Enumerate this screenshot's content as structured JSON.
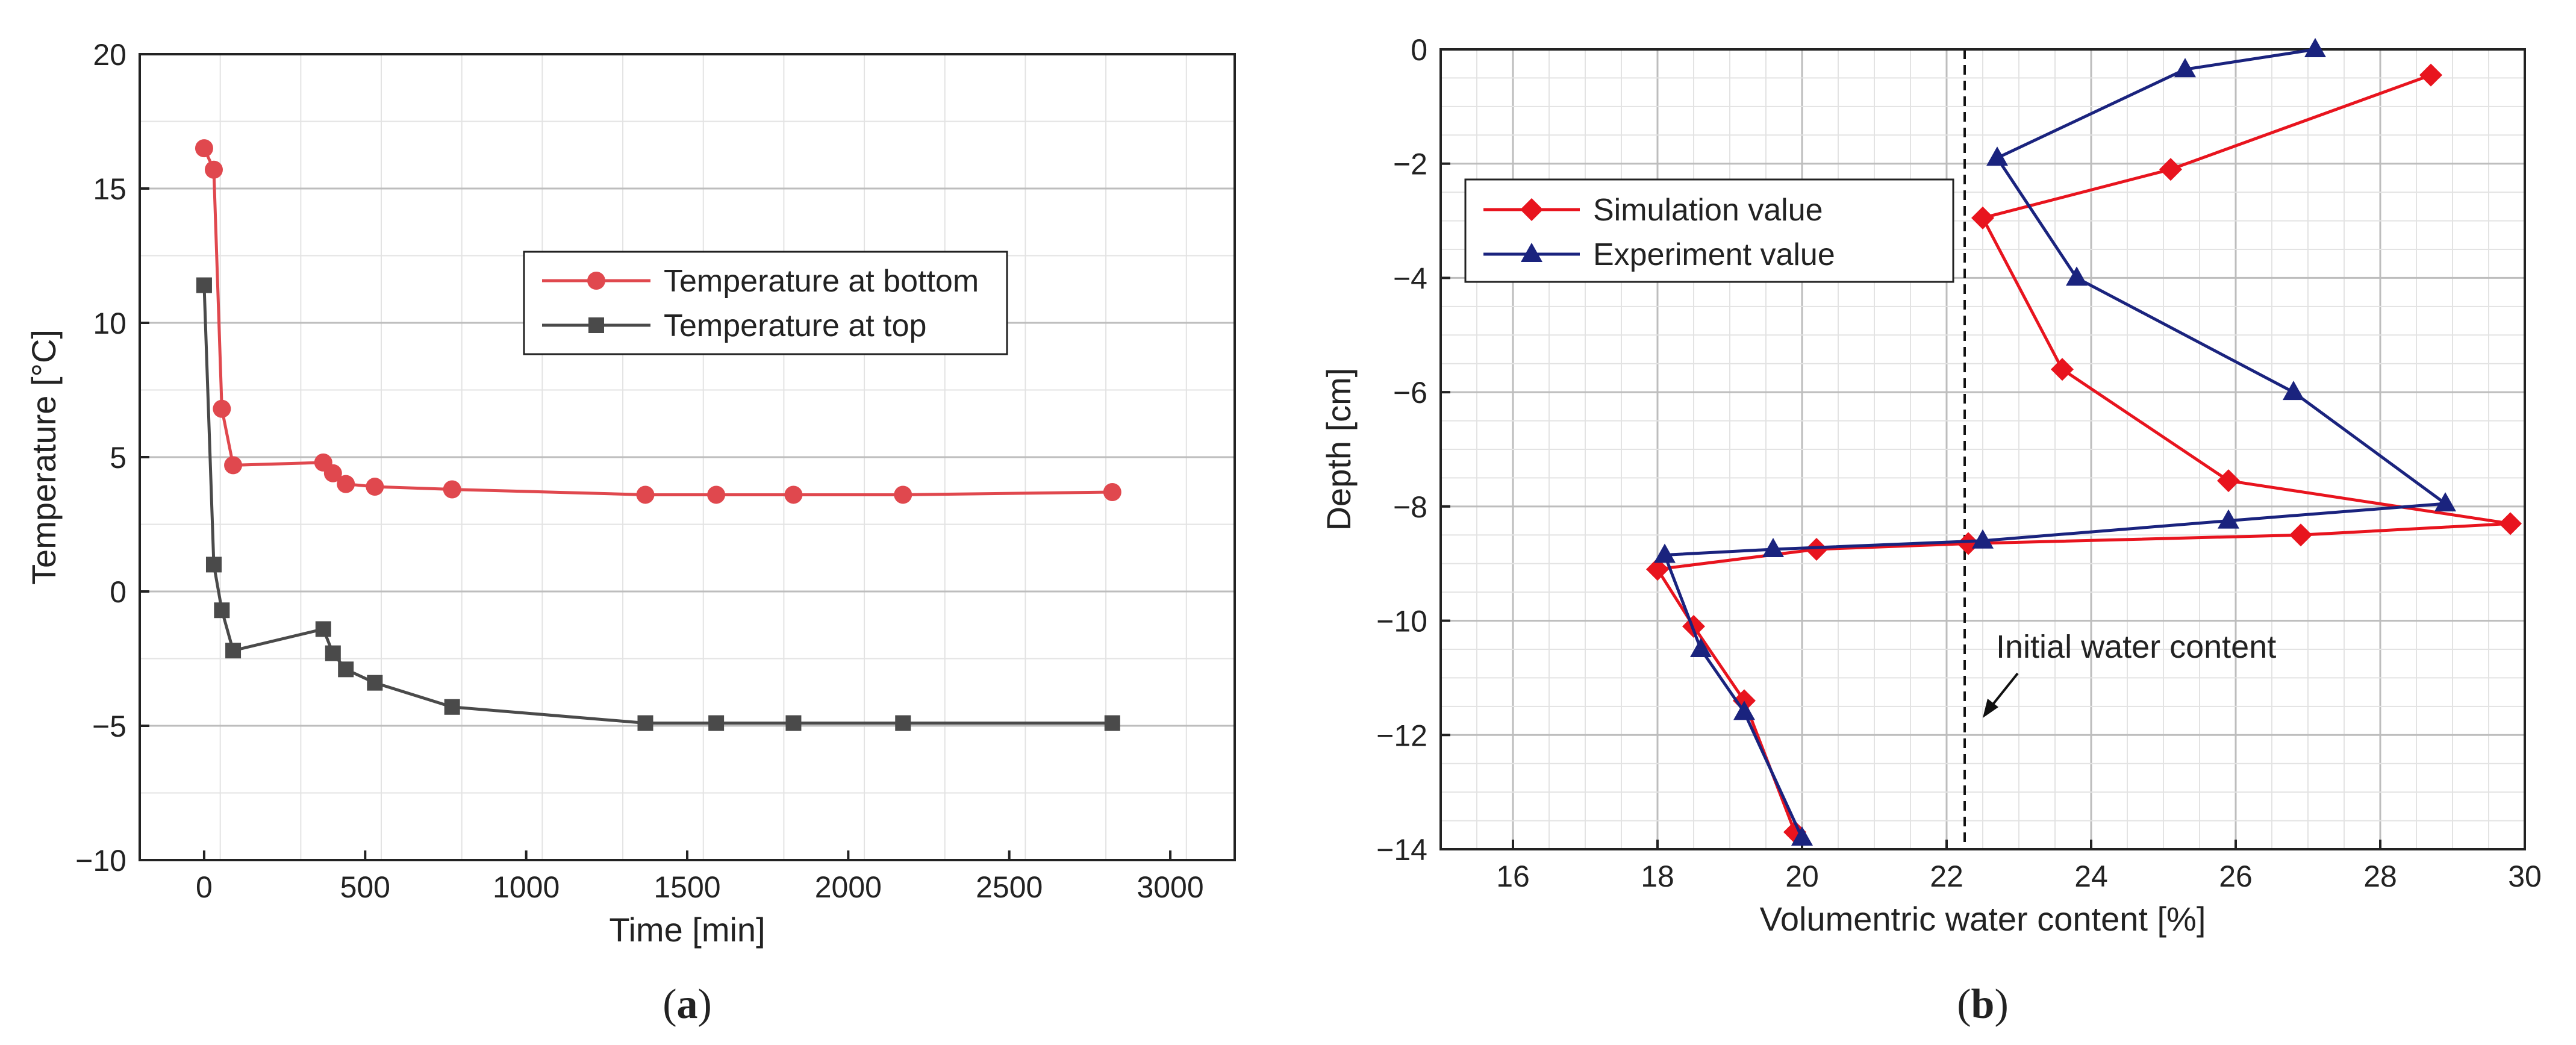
{
  "chart_data": [
    {
      "id": "a",
      "type": "line",
      "caption": "a",
      "xlabel": "Time [min]",
      "ylabel": "Temperature [°C]",
      "xlim": [
        -200,
        3200
      ],
      "ylim": [
        -10,
        20
      ],
      "xticks": [
        0,
        500,
        1000,
        1500,
        2000,
        2500,
        3000
      ],
      "yticks": [
        -10,
        -5,
        0,
        5,
        10,
        15,
        20
      ],
      "legend_position": "upper-right",
      "grid": true,
      "series": [
        {
          "name": "Temperature at bottom",
          "color": "#e0484e",
          "marker": "circle",
          "x": [
            0,
            30,
            55,
            90,
            370,
            400,
            440,
            530,
            770,
            1370,
            1590,
            1830,
            2170,
            2820
          ],
          "y": [
            16.5,
            15.7,
            6.8,
            4.7,
            4.8,
            4.4,
            4.0,
            3.9,
            3.8,
            3.6,
            3.6,
            3.6,
            3.6,
            3.7
          ]
        },
        {
          "name": "Temperature at top",
          "color": "#4a4a4a",
          "marker": "square",
          "x": [
            0,
            30,
            55,
            90,
            370,
            400,
            440,
            530,
            770,
            1370,
            1590,
            1830,
            2170,
            2820
          ],
          "y": [
            11.4,
            1.0,
            -0.7,
            -2.2,
            -1.4,
            -2.3,
            -2.9,
            -3.4,
            -4.3,
            -4.9,
            -4.9,
            -4.9,
            -4.9,
            -4.9
          ]
        }
      ]
    },
    {
      "id": "b",
      "type": "line",
      "caption": "b",
      "xlabel": "Volumentric water content [%]",
      "ylabel": "Depth [cm]",
      "xlim": [
        15,
        30
      ],
      "ylim": [
        -14,
        0
      ],
      "xticks": [
        16,
        18,
        20,
        22,
        24,
        26,
        28,
        30
      ],
      "yticks": [
        0,
        -2,
        -4,
        -6,
        -8,
        -10,
        -12,
        -14
      ],
      "legend_position": "upper-left",
      "grid": true,
      "annotation": {
        "text": "Initial water content",
        "x": 22.25
      },
      "series": [
        {
          "name": "Simulation value",
          "color": "#e8141e",
          "marker": "diamond",
          "x": [
            28.7,
            25.1,
            22.5,
            23.6,
            25.9,
            29.8,
            26.9,
            22.3,
            20.2,
            18.0,
            18.5,
            19.2,
            19.9
          ],
          "y": [
            -0.45,
            -2.1,
            -2.95,
            -5.6,
            -7.55,
            -8.3,
            -8.5,
            -8.65,
            -8.75,
            -9.1,
            -10.1,
            -11.4,
            -13.7
          ]
        },
        {
          "name": "Experiment value",
          "color": "#1a237e",
          "marker": "triangle",
          "x": [
            27.1,
            25.3,
            22.7,
            23.8,
            26.8,
            28.9,
            25.9,
            22.5,
            19.6,
            18.1,
            18.6,
            19.2,
            20.0
          ],
          "y": [
            0.0,
            -0.35,
            -1.9,
            -4.0,
            -6.0,
            -7.95,
            -8.25,
            -8.6,
            -8.75,
            -8.85,
            -10.5,
            -11.6,
            -13.8
          ]
        }
      ]
    }
  ]
}
